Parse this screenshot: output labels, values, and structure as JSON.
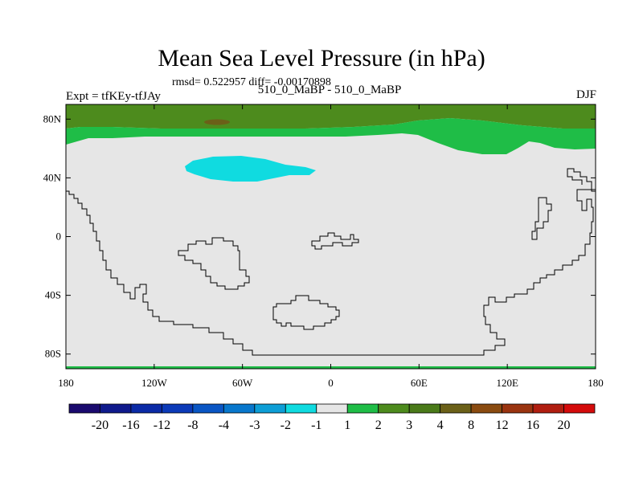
{
  "header": {
    "title": "Mean Sea Level Pressure (in hPa)",
    "stats": "rmsd= 0.522957 diff= -0.00170898",
    "left_label": "Expt = tfKEy-tfJAy",
    "center_label": "510_0_MaBP - 510_0_MaBP",
    "right_label": "DJF"
  },
  "map": {
    "projection": "cylindrical equidistant",
    "lon_range": [
      -180,
      180
    ],
    "lat_range": [
      -90,
      90
    ],
    "lat_ticks": [
      {
        "value": 80,
        "label": "80N"
      },
      {
        "value": 40,
        "label": "40N"
      },
      {
        "value": 0,
        "label": "0"
      },
      {
        "value": -40,
        "label": "40S"
      },
      {
        "value": -80,
        "label": "80S"
      }
    ],
    "lon_ticks": [
      {
        "value": -180,
        "label": "180"
      },
      {
        "value": -120,
        "label": "120W"
      },
      {
        "value": -60,
        "label": "60W"
      },
      {
        "value": 0,
        "label": "0"
      },
      {
        "value": 60,
        "label": "60E"
      },
      {
        "value": 120,
        "label": "120E"
      },
      {
        "value": 180,
        "label": "180"
      }
    ],
    "colors": {
      "background": "#e6e6e6",
      "band_2_3": "#1fbd47",
      "band_3_4": "#4d8b1d",
      "band_4_8": "#6b6018",
      "band_minus2_minus1": "#10dbe0",
      "coastline": "#000000"
    }
  },
  "colorbar": {
    "colors": [
      "#1a0a6e",
      "#0f1a8c",
      "#0b2aa6",
      "#0c3ab8",
      "#0a56c4",
      "#0877cc",
      "#0d9ed6",
      "#10dbe0",
      "#e6e6e6",
      "#1fbd47",
      "#4d8b1d",
      "#4a7a19",
      "#6b6018",
      "#8a4b10",
      "#9a3410",
      "#b01e10",
      "#d40b0b"
    ],
    "labels": [
      "-20",
      "-16",
      "-12",
      "-8",
      "-4",
      "-3",
      "-2",
      "-1",
      "1",
      "2",
      "3",
      "4",
      "8",
      "12",
      "16",
      "20"
    ]
  }
}
